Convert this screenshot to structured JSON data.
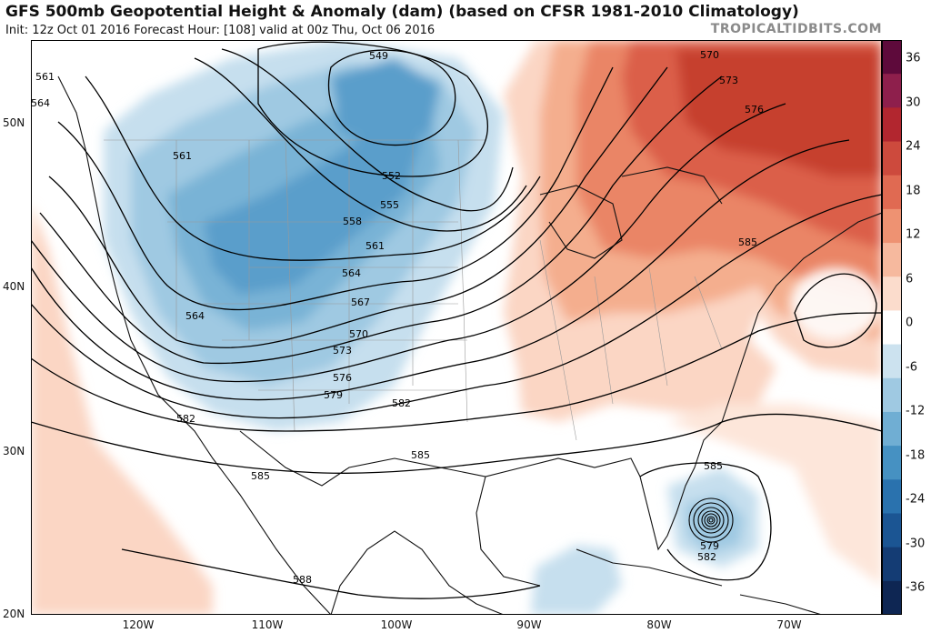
{
  "title": "GFS 500mb Geopotential Height & Anomaly (dam) (based on CFSR 1981-2010 Climatology)",
  "subtitle": "Init: 12z Oct 01 2016   Forecast Hour: [108]   valid at 00z Thu, Oct 06 2016",
  "watermark": "TROPICALTIDBITS.COM",
  "lat_labels": [
    "50N",
    "40N",
    "30N",
    "20N"
  ],
  "lon_labels": [
    "120W",
    "110W",
    "100W",
    "90W",
    "80W",
    "70W"
  ],
  "colorbar": {
    "ticks": [
      "36",
      "30",
      "24",
      "18",
      "12",
      "6",
      "0",
      "-6",
      "-12",
      "-18",
      "-24",
      "-30",
      "-36"
    ],
    "colors": [
      "#5e0a3b",
      "#8e1f4c",
      "#b2262f",
      "#cd4a3d",
      "#e06a52",
      "#ee9272",
      "#f6b99e",
      "#fbdccc",
      "#ffffff",
      "#cce2ef",
      "#9fc9e2",
      "#70aed3",
      "#4691c2",
      "#2a72ae",
      "#1b5593",
      "#143c74",
      "#0e2653"
    ]
  },
  "contour_labels": [
    "549",
    "552",
    "555",
    "558",
    "561",
    "561",
    "561",
    "564",
    "564",
    "564",
    "567",
    "570",
    "570",
    "573",
    "573",
    "576",
    "576",
    "579",
    "579",
    "582",
    "582",
    "582",
    "585",
    "585",
    "585",
    "585",
    "588"
  ],
  "chart_data": {
    "type": "heatmap",
    "title": "GFS 500mb Geopotential Height & Anomaly (dam) (based on CFSR 1981-2010 Climatology)",
    "valid_time": "valid at 00z Thu, Oct 06 2016",
    "init": "12z Oct 01 2016",
    "forecast_hour": 108,
    "anomaly_range": [
      -36,
      36
    ],
    "height_contours_dam": [
      549,
      552,
      555,
      558,
      561,
      564,
      567,
      570,
      573,
      576,
      579,
      582,
      585,
      588
    ],
    "x_axis": [
      "120W",
      "110W",
      "100W",
      "90W",
      "80W",
      "70W"
    ],
    "y_axis": [
      "50N",
      "40N",
      "30N",
      "20N"
    ]
  }
}
